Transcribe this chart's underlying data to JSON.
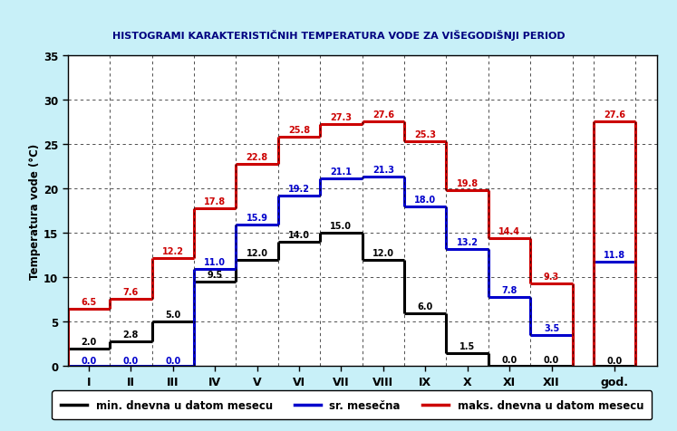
{
  "title": "HISTOGRAMI KARAKTERISTIČNIH TEMPERATURA VODE ZA VIŠEGODIŠNJI PERIOD",
  "ylabel": "Temperatura vode (°C)",
  "background_color": "#c8f0f8",
  "plot_bg_color": "#ffffff",
  "months": [
    "I",
    "II",
    "III",
    "IV",
    "V",
    "VI",
    "VII",
    "VIII",
    "IX",
    "X",
    "XI",
    "XII",
    "god."
  ],
  "min_values": [
    2.0,
    2.8,
    5.0,
    9.5,
    12.0,
    14.0,
    15.0,
    12.0,
    6.0,
    1.5,
    0.0,
    0.0
  ],
  "avg_values": [
    0.0,
    0.0,
    0.0,
    11.0,
    15.9,
    19.2,
    21.1,
    21.3,
    18.0,
    13.2,
    7.8,
    3.5
  ],
  "max_values": [
    6.5,
    7.6,
    12.2,
    17.8,
    22.8,
    25.8,
    27.3,
    27.6,
    25.3,
    19.8,
    14.4,
    9.3
  ],
  "god_min": 0.0,
  "god_avg": 11.8,
  "god_max": 27.6,
  "ylim": [
    0,
    35
  ],
  "yticks": [
    0,
    5,
    10,
    15,
    20,
    25,
    30,
    35
  ],
  "min_color": "#000000",
  "avg_color": "#0000cc",
  "max_color": "#cc0000",
  "title_color": "#000080",
  "legend_labels": [
    "min. dnevna u datom mesecu",
    "sr. mesečna",
    "maks. dnevna u datom mesecu"
  ],
  "min_annotations": [
    [
      0,
      2.0,
      "2.0",
      0.3
    ],
    [
      1,
      2.8,
      "2.8",
      0.3
    ],
    [
      2,
      5.0,
      "5.0",
      0.3
    ],
    [
      3,
      9.5,
      "9.5",
      0.3
    ],
    [
      4,
      12.0,
      "12.0",
      0.3
    ],
    [
      5,
      14.0,
      "14.0",
      0.3
    ],
    [
      6,
      15.0,
      "15.0",
      0.3
    ],
    [
      7,
      12.0,
      "12.0",
      0.3
    ],
    [
      8,
      6.0,
      "6.0",
      0.3
    ],
    [
      9,
      1.5,
      "1.5",
      0.3
    ],
    [
      10,
      0.0,
      "0.0",
      0.3
    ],
    [
      11,
      0.0,
      "0.0",
      0.3
    ]
  ],
  "avg_annotations": [
    [
      0,
      0.0,
      "0.0",
      0.3
    ],
    [
      1,
      0.0,
      "0.0",
      0.3
    ],
    [
      2,
      0.0,
      "0.0",
      0.3
    ],
    [
      3,
      11.0,
      "11.0",
      0.3
    ],
    [
      4,
      15.9,
      "15.9",
      0.3
    ],
    [
      5,
      19.2,
      "19.2",
      0.3
    ],
    [
      6,
      21.1,
      "21.1",
      0.3
    ],
    [
      7,
      21.3,
      "21.3",
      0.3
    ],
    [
      8,
      18.0,
      "18.0",
      0.3
    ],
    [
      9,
      13.2,
      "13.2",
      0.3
    ],
    [
      10,
      7.8,
      "7.8",
      0.3
    ],
    [
      11,
      3.5,
      "3.5",
      0.3
    ]
  ],
  "max_annotations": [
    [
      0,
      6.5,
      "6.5",
      0.3
    ],
    [
      1,
      7.6,
      "7.6",
      0.3
    ],
    [
      2,
      12.2,
      "12.2",
      0.3
    ],
    [
      3,
      17.8,
      "17.8",
      0.3
    ],
    [
      4,
      22.8,
      "22.8",
      0.3
    ],
    [
      5,
      25.8,
      "25.8",
      0.3
    ],
    [
      6,
      27.3,
      "27.3",
      0.3
    ],
    [
      7,
      27.6,
      "27.6",
      0.3
    ],
    [
      8,
      25.3,
      "25.3",
      0.3
    ],
    [
      9,
      19.8,
      "19.8",
      0.3
    ],
    [
      10,
      14.4,
      "14.4",
      0.3
    ],
    [
      11,
      9.3,
      "9.3",
      0.3
    ]
  ]
}
